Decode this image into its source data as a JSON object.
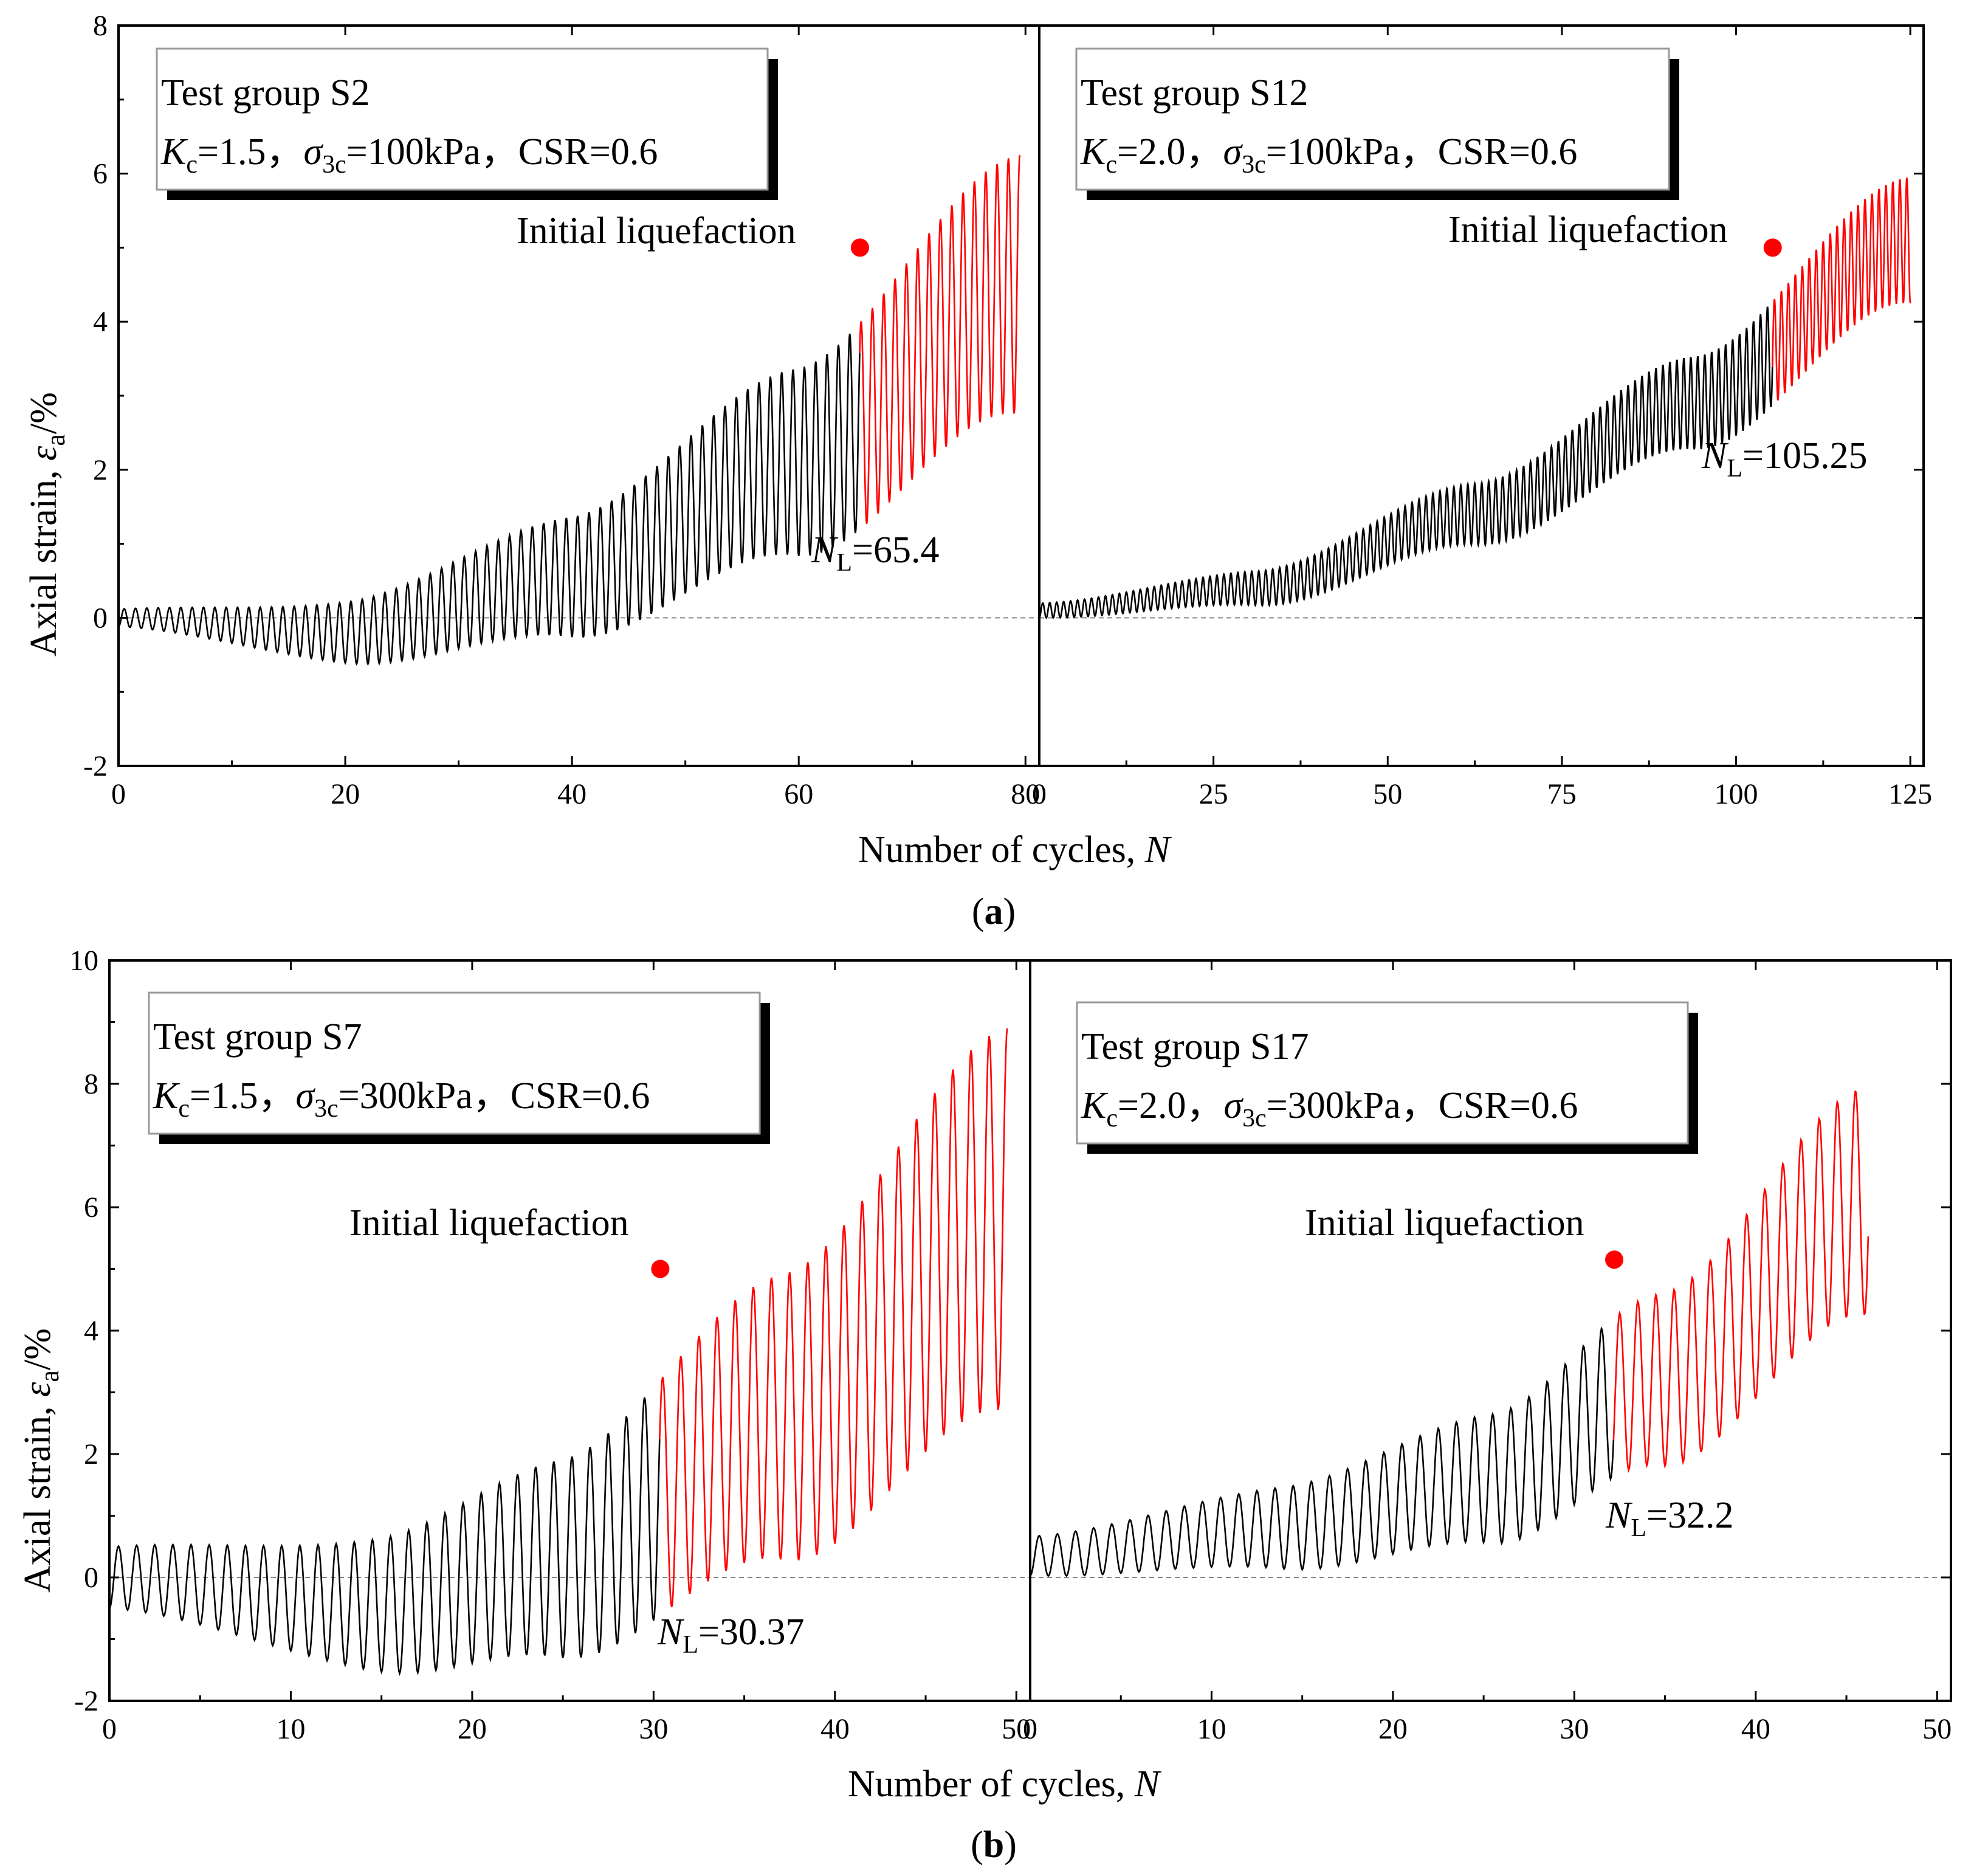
{
  "chart_data": [
    {
      "id": "a",
      "type": "line",
      "caption": "(a)",
      "caption_letter": "a",
      "xlabel_text": "Number of cycles, ",
      "xlabel_var": "N",
      "ylabel_text": "Axial strain, ",
      "ylabel_var": "ε",
      "ylabel_sub": "a",
      "ylabel_unit": "/%",
      "ylim": [
        -2,
        8
      ],
      "yticks": [
        "-2",
        "0",
        "2",
        "4",
        "6",
        "8"
      ],
      "panels": [
        {
          "name": "S2",
          "xlim": [
            0,
            80
          ],
          "xticks": [
            "0",
            "20",
            "40",
            "60",
            "80"
          ],
          "legend": {
            "line1": "Test group S2",
            "kc_var": "K",
            "kc_sub": "c",
            "kc_value": "=1.5，",
            "sigma_var": "σ",
            "sigma_sub": "3c",
            "sigma_value": "=100kPa，",
            "csr": "CSR=0.6"
          },
          "annotation": "Initial liquefaction",
          "nl_var": "N",
          "nl_sub": "L",
          "nl_value": "=65.4",
          "liquefaction_point": {
            "x": 65.4,
            "y": 5.0
          },
          "curve": {
            "n_end": 79.5,
            "mid_start": 0.0,
            "mid_end": 4.6,
            "mid_shape": [
              [
                0,
                0
              ],
              [
                0.25,
                -0.2
              ],
              [
                0.5,
                0.55
              ],
              [
                0.75,
                2.1
              ],
              [
                1.0,
                4.5
              ]
            ],
            "amp_start": 0.12,
            "amp_end": 1.75,
            "colors": {
              "pre": "#000000",
              "post": "#ff0000"
            }
          }
        },
        {
          "name": "S12",
          "xlim": [
            0,
            125
          ],
          "xticks": [
            "0",
            "25",
            "50",
            "75",
            "100",
            "125"
          ],
          "legend": {
            "line1": "Test group S12",
            "kc_var": "K",
            "kc_sub": "c",
            "kc_value": "=2.0，",
            "sigma_var": "σ",
            "sigma_sub": "3c",
            "sigma_value": "=100kPa，",
            "csr": "CSR=0.6"
          },
          "annotation": "Initial liquefaction",
          "nl_var": "N",
          "nl_sub": "L",
          "nl_value": "=105.25",
          "liquefaction_point": {
            "x": 105.25,
            "y": 5.0
          },
          "curve": {
            "n_end": 125,
            "mid_start": 0.1,
            "mid_end": 5.1,
            "mid_shape": [
              [
                0,
                0.1
              ],
              [
                0.25,
                0.4
              ],
              [
                0.5,
                1.4
              ],
              [
                0.75,
                2.9
              ],
              [
                1.0,
                5.1
              ]
            ],
            "amp_start": 0.1,
            "amp_end": 0.85,
            "colors": {
              "pre": "#000000",
              "post": "#ff0000"
            }
          }
        }
      ]
    },
    {
      "id": "b",
      "type": "line",
      "caption": "(b)",
      "caption_letter": "b",
      "xlabel_text": "Number of cycles, ",
      "xlabel_var": "N",
      "ylabel_text": "Axial strain, ",
      "ylabel_var": "ε",
      "ylabel_sub": "a",
      "ylabel_unit": "/%",
      "ylim": [
        -2,
        10
      ],
      "yticks": [
        "-2",
        "0",
        "2",
        "4",
        "6",
        "8",
        "10"
      ],
      "panels": [
        {
          "name": "S7",
          "xlim": [
            0,
            50
          ],
          "xticks": [
            "0",
            "10",
            "20",
            "30",
            "40",
            "50"
          ],
          "legend": {
            "line1": "Test group S7",
            "kc_var": "K",
            "kc_sub": "c",
            "kc_value": "=1.5，",
            "sigma_var": "σ",
            "sigma_sub": "3c",
            "sigma_value": "=300kPa，",
            "csr": "CSR=0.6"
          },
          "annotation": "Initial liquefaction",
          "nl_var": "N",
          "nl_sub": "L",
          "nl_value": "=30.37",
          "liquefaction_point": {
            "x": 30.37,
            "y": 5.0
          },
          "curve": {
            "n_end": 49.5,
            "mid_start": 0.0,
            "mid_end": 5.8,
            "mid_shape": [
              [
                0,
                0
              ],
              [
                0.3,
                -0.45
              ],
              [
                0.5,
                0.3
              ],
              [
                0.75,
                2.6
              ],
              [
                1.0,
                5.8
              ]
            ],
            "amp_start": 0.5,
            "amp_end": 3.1,
            "colors": {
              "pre": "#000000",
              "post": "#ff0000"
            }
          }
        },
        {
          "name": "S17",
          "xlim": [
            0,
            50
          ],
          "xticks": [
            "0",
            "10",
            "20",
            "30",
            "40",
            "50"
          ],
          "legend": {
            "line1": "Test group S17",
            "kc_var": "K",
            "kc_sub": "c",
            "kc_value": "=2.0，",
            "sigma_var": "σ",
            "sigma_sub": "3c",
            "sigma_value": "=300kPa，",
            "csr": "CSR=0.6"
          },
          "annotation": "Initial liquefaction",
          "nl_var": "N",
          "nl_sub": "L",
          "nl_value": "=32.2",
          "liquefaction_point": {
            "x": 32.2,
            "y": 5.15
          },
          "curve": {
            "n_end": 46.2,
            "mid_start": 0.35,
            "mid_end": 6.1,
            "mid_shape": [
              [
                0,
                0.35
              ],
              [
                0.3,
                0.8
              ],
              [
                0.55,
                1.6
              ],
              [
                0.75,
                3.2
              ],
              [
                1.0,
                6.1
              ]
            ],
            "amp_start": 0.32,
            "amp_end": 1.85,
            "colors": {
              "pre": "#000000",
              "post": "#ff0000"
            }
          }
        }
      ]
    }
  ]
}
